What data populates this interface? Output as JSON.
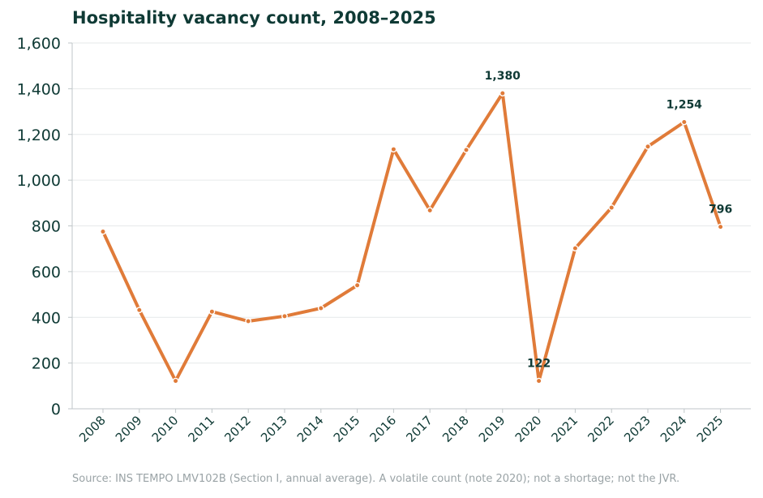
{
  "chart_data": {
    "type": "line",
    "title": "Hospitality vacancy count, 2008–2025",
    "xlabel": "",
    "ylabel": "",
    "ylim": [
      0,
      1600
    ],
    "y_ticks": [
      0,
      200,
      400,
      600,
      800,
      1000,
      1200,
      1400,
      1600
    ],
    "y_tick_labels": [
      "0",
      "200",
      "400",
      "600",
      "800",
      "1,000",
      "1,200",
      "1,400",
      "1,600"
    ],
    "x": [
      "2008",
      "2009",
      "2010",
      "2011",
      "2012",
      "2013",
      "2014",
      "2015",
      "2016",
      "2017",
      "2018",
      "2019",
      "2020",
      "2021",
      "2022",
      "2023",
      "2024",
      "2025"
    ],
    "series": [
      {
        "values": [
          775,
          432,
          122,
          425,
          383,
          405,
          440,
          540,
          1135,
          868,
          1132,
          1380,
          122,
          702,
          880,
          1147,
          1254,
          796
        ]
      }
    ],
    "annotations": [
      {
        "x": "2019",
        "value": 1380,
        "label": "1,380"
      },
      {
        "x": "2020",
        "value": 122,
        "label": "122"
      },
      {
        "x": "2024",
        "value": 1254,
        "label": "1,254"
      },
      {
        "x": "2025",
        "value": 796,
        "label": "796"
      }
    ],
    "grid": true,
    "colors": {
      "line": "#e07b39",
      "text": "#0f3a35",
      "grid": "#e6e9ea",
      "axis": "#bfc6c8",
      "note": "#9aa3a6"
    }
  },
  "source_note": "Source: INS TEMPO LMV102B (Section I, annual average). A volatile count (note 2020); not a shortage; not the JVR."
}
